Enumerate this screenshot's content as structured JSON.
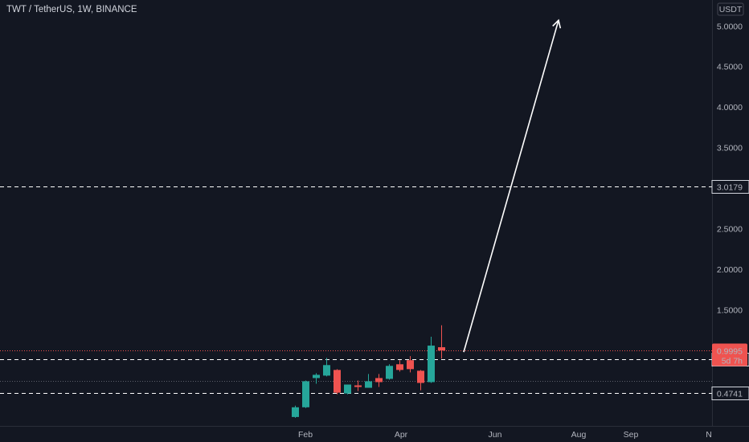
{
  "header": {
    "title": "TWT / TetherUS, 1W, BINANCE"
  },
  "price_axis": {
    "currency": "USDT"
  },
  "colors": {
    "background": "#131722",
    "up": "#26a69a",
    "down": "#ef5350",
    "text": "#b2b5be",
    "level_line": "#ffffff",
    "price_line": "#ef5350"
  },
  "chart_data": {
    "type": "candlestick",
    "symbol": "TWT / TetherUS",
    "interval": "1W",
    "exchange": "BINANCE",
    "y_ticks": [
      "5.0000",
      "4.5000",
      "4.0000",
      "3.5000",
      "3.0000",
      "2.5000",
      "2.0000",
      "1.5000"
    ],
    "x_ticks": [
      "Feb",
      "Apr",
      "Jun",
      "Aug",
      "Sep",
      "N"
    ],
    "ylim": [
      0.07,
      5.28
    ],
    "grid": false,
    "candles": [
      {
        "open": 0.18,
        "high": 0.32,
        "low": 0.17,
        "close": 0.3
      },
      {
        "open": 0.3,
        "high": 0.63,
        "low": 0.29,
        "close": 0.62
      },
      {
        "open": 0.66,
        "high": 0.72,
        "low": 0.59,
        "close": 0.7
      },
      {
        "open": 0.69,
        "high": 0.91,
        "low": 0.68,
        "close": 0.82
      },
      {
        "open": 0.76,
        "high": 0.77,
        "low": 0.46,
        "close": 0.48
      },
      {
        "open": 0.47,
        "high": 0.58,
        "low": 0.46,
        "close": 0.58
      },
      {
        "open": 0.57,
        "high": 0.63,
        "low": 0.5,
        "close": 0.55
      },
      {
        "open": 0.54,
        "high": 0.71,
        "low": 0.54,
        "close": 0.62
      },
      {
        "open": 0.66,
        "high": 0.71,
        "low": 0.55,
        "close": 0.61
      },
      {
        "open": 0.65,
        "high": 0.83,
        "low": 0.64,
        "close": 0.81
      },
      {
        "open": 0.83,
        "high": 0.88,
        "low": 0.74,
        "close": 0.76
      },
      {
        "open": 0.88,
        "high": 0.93,
        "low": 0.73,
        "close": 0.77
      },
      {
        "open": 0.75,
        "high": 0.76,
        "low": 0.51,
        "close": 0.6
      },
      {
        "open": 0.61,
        "high": 1.17,
        "low": 0.6,
        "close": 1.06
      },
      {
        "open": 1.04,
        "high": 1.31,
        "low": 0.9,
        "close": 0.9995
      }
    ],
    "levels": [
      "3.0179",
      "0.8931",
      "0.4741"
    ],
    "current_price": {
      "value": "0.9995",
      "countdown": "5d 7h"
    },
    "projection_arrow": {
      "from": 0.98,
      "to": 5.07
    }
  }
}
